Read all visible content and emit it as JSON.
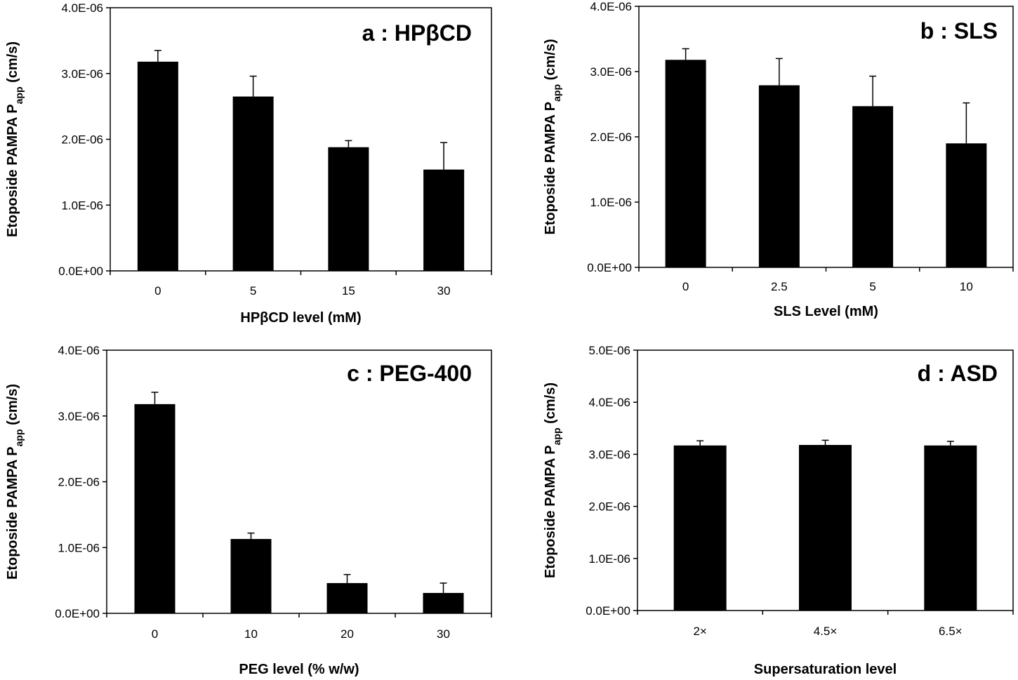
{
  "chart_data": [
    {
      "type": "bar",
      "title": "a : HPβCD",
      "xlabel": "HPβCD  level (mM)",
      "ylabel": "Etoposide PAMPA P",
      "ylabel_sub": "app",
      "ylabel_unit": " (cm/s)",
      "categories": [
        "0",
        "5",
        "15",
        "30"
      ],
      "values": [
        3.18e-06,
        2.65e-06,
        1.88e-06,
        1.54e-06
      ],
      "errors": [
        1.7e-07,
        3.1e-07,
        1e-07,
        4.1e-07
      ],
      "ylim": [
        0,
        4e-06
      ],
      "yticks": [
        "0.0E+00",
        "1.0E-06",
        "2.0E-06",
        "3.0E-06",
        "4.0E-06"
      ],
      "bar_color": "#000000"
    },
    {
      "type": "bar",
      "title": "b : SLS",
      "xlabel": "SLS Level (mM)",
      "ylabel": "Etoposide PAMPA P",
      "ylabel_sub": "app",
      "ylabel_unit": " (cm/s)",
      "categories": [
        "0",
        "2.5",
        "5",
        "10"
      ],
      "values": [
        3.18e-06,
        2.79e-06,
        2.47e-06,
        1.9e-06
      ],
      "errors": [
        1.7e-07,
        4.1e-07,
        4.6e-07,
        6.2e-07
      ],
      "ylim": [
        0,
        4e-06
      ],
      "yticks": [
        "0.0E+00",
        "1.0E-06",
        "2.0E-06",
        "3.0E-06",
        "4.0E-06"
      ],
      "bar_color": "#000000"
    },
    {
      "type": "bar",
      "title": "c : PEG-400",
      "xlabel": "PEG  level (% w/w)",
      "ylabel": "Etoposide PAMPA P",
      "ylabel_sub": "app",
      "ylabel_unit": " (cm/s)",
      "categories": [
        "0",
        "10",
        "20",
        "30"
      ],
      "values": [
        3.18e-06,
        1.13e-06,
        4.6e-07,
        3.1e-07
      ],
      "errors": [
        1.8e-07,
        9e-08,
        1.3e-07,
        1.5e-07
      ],
      "ylim": [
        0,
        4e-06
      ],
      "yticks": [
        "0.0E+00",
        "1.0E-06",
        "2.0E-06",
        "3.0E-06",
        "4.0E-06"
      ],
      "bar_color": "#000000"
    },
    {
      "type": "bar",
      "title": "d : ASD",
      "xlabel": "Supersaturation  level",
      "ylabel": "Etoposide PAMPA P",
      "ylabel_sub": "app",
      "ylabel_unit": " (cm/s)",
      "categories": [
        "2×",
        "4.5×",
        "6.5×"
      ],
      "values": [
        3.17e-06,
        3.18e-06,
        3.17e-06
      ],
      "errors": [
        9e-08,
        9e-08,
        8e-08
      ],
      "ylim": [
        0,
        5e-06
      ],
      "yticks": [
        "0.0E+00",
        "1.0E-06",
        "2.0E-06",
        "3.0E-06",
        "4.0E-06",
        "5.0E-06"
      ],
      "bar_color": "#000000"
    }
  ]
}
